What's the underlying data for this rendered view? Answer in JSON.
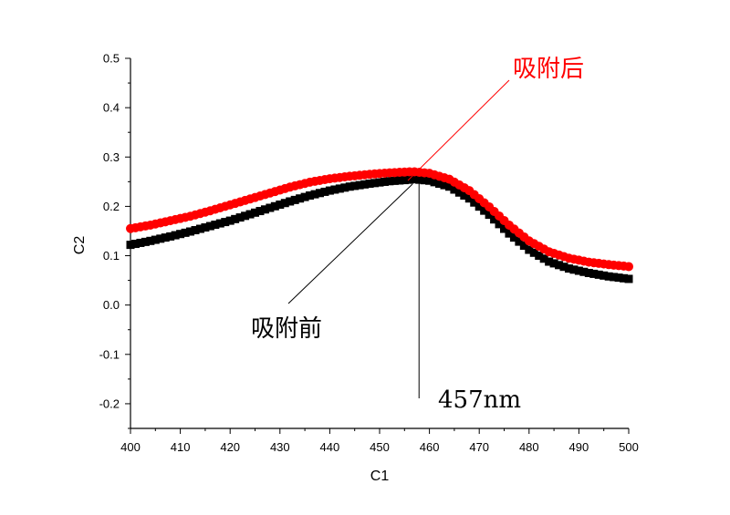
{
  "chart_data": {
    "type": "scatter",
    "xlabel": "C1",
    "ylabel": "C2",
    "xlim": [
      400,
      500
    ],
    "ylim": [
      -0.25,
      0.5
    ],
    "x_ticks": [
      400,
      410,
      420,
      430,
      440,
      450,
      460,
      470,
      480,
      490,
      500
    ],
    "y_ticks": [
      -0.2,
      -0.1,
      0.0,
      0.1,
      0.2,
      0.3,
      0.4,
      0.5
    ],
    "y_tick_labels": [
      "-0.2",
      "-0.1",
      "0.0",
      "0.1",
      "0.2",
      "0.3",
      "0.4",
      "0.5"
    ],
    "x": [
      400,
      404,
      408,
      412,
      416,
      420,
      424,
      428,
      432,
      436,
      440,
      444,
      448,
      452,
      456,
      457,
      460,
      464,
      468,
      472,
      476,
      480,
      484,
      488,
      492,
      496,
      500
    ],
    "series": [
      {
        "label": "吸附后",
        "color": "#ff0000",
        "marker": "circle",
        "values": [
          0.155,
          0.162,
          0.171,
          0.18,
          0.191,
          0.203,
          0.215,
          0.227,
          0.239,
          0.249,
          0.256,
          0.261,
          0.265,
          0.268,
          0.27,
          0.27,
          0.267,
          0.255,
          0.232,
          0.199,
          0.162,
          0.13,
          0.108,
          0.095,
          0.087,
          0.082,
          0.078
        ]
      },
      {
        "label": "吸附前",
        "color": "#000000",
        "marker": "square",
        "values": [
          0.122,
          0.13,
          0.139,
          0.149,
          0.16,
          0.171,
          0.184,
          0.197,
          0.21,
          0.222,
          0.232,
          0.24,
          0.246,
          0.251,
          0.254,
          0.255,
          0.252,
          0.24,
          0.216,
          0.183,
          0.145,
          0.112,
          0.088,
          0.074,
          0.065,
          0.058,
          0.053
        ]
      }
    ],
    "annotations": [
      {
        "text": "吸附后",
        "color": "#ff0000"
      },
      {
        "text": "吸附前",
        "color": "#000000"
      },
      {
        "text": "457nm",
        "color": "#000000",
        "x": 457
      }
    ],
    "grid": false,
    "legend": "none"
  }
}
